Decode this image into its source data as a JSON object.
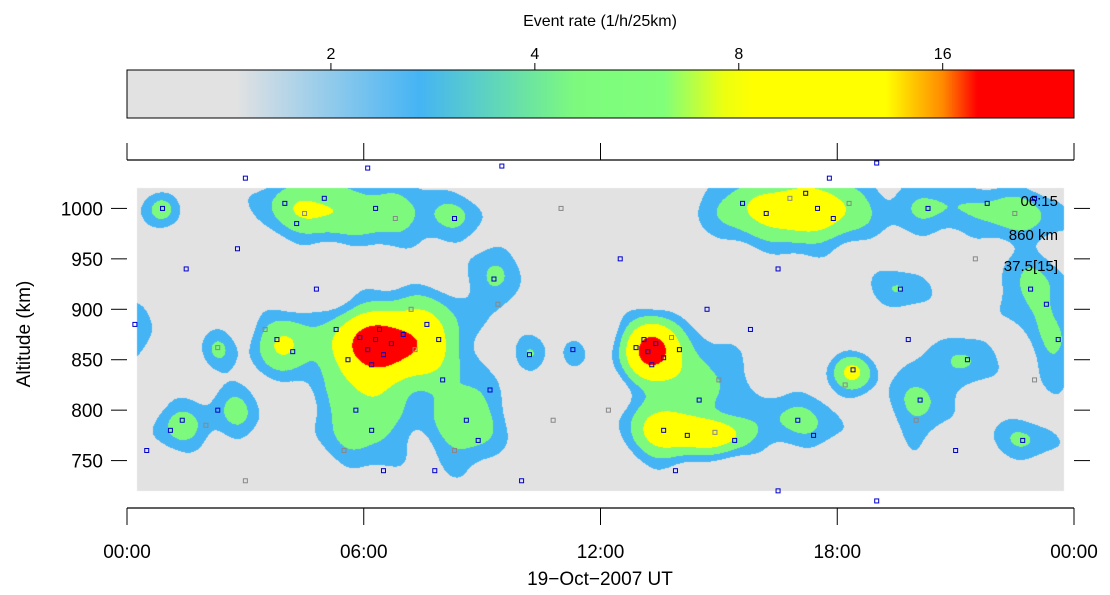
{
  "chart_data": {
    "type": "heatmap",
    "colorbar": {
      "title": "Event rate (1/h/25km)",
      "ticks": [
        2,
        4,
        8,
        16
      ],
      "tick_labels": [
        "2",
        "4",
        "8",
        "16"
      ],
      "range": [
        1,
        25
      ],
      "scale": "log2",
      "stops": [
        {
          "v": 1.0,
          "c": "#e2e2e2"
        },
        {
          "v": 1.45,
          "c": "#e2e2e2"
        },
        {
          "v": 2.7,
          "c": "#45b4f4"
        },
        {
          "v": 4.6,
          "c": "#7dfa7d"
        },
        {
          "v": 6.2,
          "c": "#80ff7a"
        },
        {
          "v": 7.6,
          "c": "#ecff10"
        },
        {
          "v": 8.4,
          "c": "#ffff00"
        },
        {
          "v": 13.2,
          "c": "#ffff00"
        },
        {
          "v": 16.0,
          "c": "#ff8a00"
        },
        {
          "v": 18.0,
          "c": "#ff0000"
        },
        {
          "v": 25.0,
          "c": "#ff0000"
        }
      ]
    },
    "xlabel": "19−Oct−2007 UT",
    "ylabel": "Altitude (km)",
    "x_ticks": [
      0,
      6,
      12,
      18,
      24
    ],
    "x_tick_labels": [
      "00:00",
      "06:00",
      "12:00",
      "18:00",
      "00:00"
    ],
    "xlim": [
      0,
      24
    ],
    "ylim": [
      703,
      1048
    ],
    "y_ticks": [
      750,
      800,
      850,
      900,
      950,
      1000
    ],
    "y_tick_labels": [
      "750",
      "800",
      "850",
      "900",
      "950",
      "1000"
    ],
    "annotations": [
      "06:15",
      "860 km",
      "37.5[15]"
    ],
    "contour_levels": [
      {
        "level": 2.5,
        "color": "#45b4f4"
      },
      {
        "level": 4.5,
        "color": "#7dfa7d"
      },
      {
        "level": 8,
        "color": "#ffff00"
      },
      {
        "level": 16,
        "color": "#ff0000"
      }
    ],
    "data_extent": {
      "x": [
        0.25,
        23.75
      ],
      "y": [
        720,
        1020
      ]
    },
    "hotspots": [
      {
        "x": 6.3,
        "y": 865,
        "peak": 20,
        "sx": 0.7,
        "sy": 22
      },
      {
        "x": 13.3,
        "y": 860,
        "peak": 19,
        "sx": 0.45,
        "sy": 18
      },
      {
        "x": 7.6,
        "y": 870,
        "peak": 9,
        "sx": 0.6,
        "sy": 28
      },
      {
        "x": 4.0,
        "y": 865,
        "peak": 8,
        "sx": 0.5,
        "sy": 18
      },
      {
        "x": 4.6,
        "y": 1000,
        "peak": 7,
        "sx": 0.8,
        "sy": 20
      },
      {
        "x": 6.5,
        "y": 995,
        "peak": 5,
        "sx": 0.9,
        "sy": 20
      },
      {
        "x": 6.0,
        "y": 800,
        "peak": 6,
        "sx": 0.8,
        "sy": 35
      },
      {
        "x": 8.6,
        "y": 790,
        "peak": 6,
        "sx": 0.6,
        "sy": 30
      },
      {
        "x": 1.4,
        "y": 785,
        "peak": 5,
        "sx": 0.5,
        "sy": 15
      },
      {
        "x": 13.6,
        "y": 780,
        "peak": 9,
        "sx": 0.6,
        "sy": 20
      },
      {
        "x": 14.9,
        "y": 776,
        "peak": 10,
        "sx": 0.6,
        "sy": 12
      },
      {
        "x": 14.4,
        "y": 830,
        "peak": 5,
        "sx": 0.8,
        "sy": 25
      },
      {
        "x": 15.6,
        "y": 1000,
        "peak": 5,
        "sx": 0.7,
        "sy": 18
      },
      {
        "x": 17.6,
        "y": 1000,
        "peak": 8,
        "sx": 0.9,
        "sy": 22
      },
      {
        "x": 16.8,
        "y": 995,
        "peak": 5,
        "sx": 0.7,
        "sy": 20
      },
      {
        "x": 20.3,
        "y": 1000,
        "peak": 4,
        "sx": 0.6,
        "sy": 15
      },
      {
        "x": 22.4,
        "y": 995,
        "peak": 5,
        "sx": 0.9,
        "sy": 18
      },
      {
        "x": 22.9,
        "y": 920,
        "peak": 4,
        "sx": 0.6,
        "sy": 25
      },
      {
        "x": 18.4,
        "y": 838,
        "peak": 8,
        "sx": 0.35,
        "sy": 12
      },
      {
        "x": 17.0,
        "y": 790,
        "peak": 4,
        "sx": 0.8,
        "sy": 20
      },
      {
        "x": 20.1,
        "y": 810,
        "peak": 4,
        "sx": 0.5,
        "sy": 30
      },
      {
        "x": 22.7,
        "y": 770,
        "peak": 3.5,
        "sx": 0.6,
        "sy": 15
      },
      {
        "x": 19.6,
        "y": 920,
        "peak": 3.5,
        "sx": 0.5,
        "sy": 15
      },
      {
        "x": 9.3,
        "y": 930,
        "peak": 4,
        "sx": 0.4,
        "sy": 25
      },
      {
        "x": 2.8,
        "y": 800,
        "peak": 4,
        "sx": 0.4,
        "sy": 20
      },
      {
        "x": 0.9,
        "y": 1000,
        "peak": 5,
        "sx": 0.3,
        "sy": 12
      },
      {
        "x": 0.2,
        "y": 880,
        "peak": 3.5,
        "sx": 0.3,
        "sy": 25
      },
      {
        "x": 10.2,
        "y": 855,
        "peak": 3.5,
        "sx": 0.3,
        "sy": 12
      },
      {
        "x": 2.3,
        "y": 860,
        "peak": 3.5,
        "sx": 0.3,
        "sy": 15
      },
      {
        "x": 8.3,
        "y": 990,
        "peak": 3.5,
        "sx": 0.5,
        "sy": 15
      },
      {
        "x": 11.3,
        "y": 855,
        "peak": 3,
        "sx": 0.2,
        "sy": 10
      },
      {
        "x": 23.5,
        "y": 865,
        "peak": 3.5,
        "sx": 0.4,
        "sy": 30
      },
      {
        "x": 21.3,
        "y": 850,
        "peak": 3.5,
        "sx": 0.5,
        "sy": 20
      }
    ],
    "scatter": [
      {
        "x": 6.1,
        "y": 860,
        "c": "#0000cc"
      },
      {
        "x": 6.3,
        "y": 870,
        "c": "#0000cc"
      },
      {
        "x": 6.5,
        "y": 855,
        "c": "#0000cc"
      },
      {
        "x": 6.2,
        "y": 845,
        "c": "#0000cc"
      },
      {
        "x": 6.4,
        "y": 880,
        "c": "#0000cc"
      },
      {
        "x": 5.9,
        "y": 872,
        "c": "#0000cc"
      },
      {
        "x": 6.7,
        "y": 866,
        "c": "#0000cc"
      },
      {
        "x": 7.0,
        "y": 875,
        "c": "#0000cc"
      },
      {
        "x": 7.3,
        "y": 860,
        "c": "#888888"
      },
      {
        "x": 7.6,
        "y": 885,
        "c": "#0000cc"
      },
      {
        "x": 7.9,
        "y": 870,
        "c": "#0000cc"
      },
      {
        "x": 7.2,
        "y": 900,
        "c": "#888888"
      },
      {
        "x": 5.6,
        "y": 850,
        "c": "#0000cc"
      },
      {
        "x": 5.3,
        "y": 880,
        "c": "#0000cc"
      },
      {
        "x": 13.2,
        "y": 858,
        "c": "#0000cc"
      },
      {
        "x": 13.4,
        "y": 866,
        "c": "#0000cc"
      },
      {
        "x": 13.1,
        "y": 870,
        "c": "#0000cc"
      },
      {
        "x": 13.6,
        "y": 852,
        "c": "#0000cc"
      },
      {
        "x": 13.3,
        "y": 845,
        "c": "#0000cc"
      },
      {
        "x": 13.8,
        "y": 872,
        "c": "#888888"
      },
      {
        "x": 12.9,
        "y": 862,
        "c": "#0000cc"
      },
      {
        "x": 14.0,
        "y": 860,
        "c": "#0000cc"
      },
      {
        "x": 4.0,
        "y": 1005,
        "c": "#0000cc"
      },
      {
        "x": 4.5,
        "y": 995,
        "c": "#888888"
      },
      {
        "x": 5.0,
        "y": 1010,
        "c": "#0000cc"
      },
      {
        "x": 4.3,
        "y": 985,
        "c": "#0000cc"
      },
      {
        "x": 6.3,
        "y": 1000,
        "c": "#0000cc"
      },
      {
        "x": 6.8,
        "y": 990,
        "c": "#888888"
      },
      {
        "x": 3.8,
        "y": 870,
        "c": "#0000cc"
      },
      {
        "x": 4.2,
        "y": 858,
        "c": "#0000cc"
      },
      {
        "x": 3.5,
        "y": 880,
        "c": "#888888"
      },
      {
        "x": 1.4,
        "y": 790,
        "c": "#0000cc"
      },
      {
        "x": 1.1,
        "y": 780,
        "c": "#0000cc"
      },
      {
        "x": 2.0,
        "y": 785,
        "c": "#888888"
      },
      {
        "x": 2.3,
        "y": 800,
        "c": "#0000cc"
      },
      {
        "x": 5.8,
        "y": 800,
        "c": "#0000cc"
      },
      {
        "x": 6.2,
        "y": 780,
        "c": "#0000cc"
      },
      {
        "x": 5.5,
        "y": 760,
        "c": "#888888"
      },
      {
        "x": 6.5,
        "y": 740,
        "c": "#0000cc"
      },
      {
        "x": 8.6,
        "y": 790,
        "c": "#0000cc"
      },
      {
        "x": 8.9,
        "y": 770,
        "c": "#0000cc"
      },
      {
        "x": 8.3,
        "y": 760,
        "c": "#888888"
      },
      {
        "x": 9.2,
        "y": 820,
        "c": "#0000cc"
      },
      {
        "x": 13.6,
        "y": 780,
        "c": "#0000cc"
      },
      {
        "x": 14.2,
        "y": 775,
        "c": "#0000cc"
      },
      {
        "x": 14.9,
        "y": 778,
        "c": "#888888"
      },
      {
        "x": 15.4,
        "y": 770,
        "c": "#0000cc"
      },
      {
        "x": 13.9,
        "y": 740,
        "c": "#0000cc"
      },
      {
        "x": 14.5,
        "y": 810,
        "c": "#0000cc"
      },
      {
        "x": 15.0,
        "y": 830,
        "c": "#888888"
      },
      {
        "x": 15.6,
        "y": 1005,
        "c": "#0000cc"
      },
      {
        "x": 16.2,
        "y": 995,
        "c": "#0000cc"
      },
      {
        "x": 16.8,
        "y": 1010,
        "c": "#888888"
      },
      {
        "x": 17.5,
        "y": 1000,
        "c": "#0000cc"
      },
      {
        "x": 17.9,
        "y": 990,
        "c": "#0000cc"
      },
      {
        "x": 18.3,
        "y": 1005,
        "c": "#888888"
      },
      {
        "x": 17.2,
        "y": 1015,
        "c": "#0000cc"
      },
      {
        "x": 20.3,
        "y": 1000,
        "c": "#0000cc"
      },
      {
        "x": 21.8,
        "y": 1005,
        "c": "#0000cc"
      },
      {
        "x": 22.5,
        "y": 995,
        "c": "#888888"
      },
      {
        "x": 23.0,
        "y": 1010,
        "c": "#0000cc"
      },
      {
        "x": 22.9,
        "y": 920,
        "c": "#0000cc"
      },
      {
        "x": 23.3,
        "y": 905,
        "c": "#0000cc"
      },
      {
        "x": 18.4,
        "y": 840,
        "c": "#0000cc"
      },
      {
        "x": 18.2,
        "y": 825,
        "c": "#888888"
      },
      {
        "x": 17.0,
        "y": 790,
        "c": "#0000cc"
      },
      {
        "x": 17.4,
        "y": 775,
        "c": "#0000cc"
      },
      {
        "x": 20.1,
        "y": 810,
        "c": "#0000cc"
      },
      {
        "x": 20.0,
        "y": 790,
        "c": "#888888"
      },
      {
        "x": 22.7,
        "y": 770,
        "c": "#0000cc"
      },
      {
        "x": 21.3,
        "y": 850,
        "c": "#0000cc"
      },
      {
        "x": 23.6,
        "y": 870,
        "c": "#0000cc"
      },
      {
        "x": 9.3,
        "y": 930,
        "c": "#0000cc"
      },
      {
        "x": 9.4,
        "y": 905,
        "c": "#888888"
      },
      {
        "x": 10.2,
        "y": 855,
        "c": "#0000cc"
      },
      {
        "x": 0.9,
        "y": 1000,
        "c": "#0000cc"
      },
      {
        "x": 0.2,
        "y": 885,
        "c": "#0000cc"
      },
      {
        "x": 2.3,
        "y": 862,
        "c": "#888888"
      },
      {
        "x": 8.3,
        "y": 990,
        "c": "#0000cc"
      },
      {
        "x": 11.3,
        "y": 860,
        "c": "#0000cc"
      },
      {
        "x": 19.6,
        "y": 920,
        "c": "#0000cc"
      },
      {
        "x": 10.0,
        "y": 730,
        "c": "#0000cc"
      },
      {
        "x": 3.0,
        "y": 730,
        "c": "#888888"
      },
      {
        "x": 16.5,
        "y": 720,
        "c": "#0000cc"
      },
      {
        "x": 19.0,
        "y": 710,
        "c": "#0000cc"
      },
      {
        "x": 12.5,
        "y": 950,
        "c": "#0000cc"
      },
      {
        "x": 11.0,
        "y": 1000,
        "c": "#888888"
      },
      {
        "x": 1.5,
        "y": 940,
        "c": "#0000cc"
      },
      {
        "x": 3.0,
        "y": 1030,
        "c": "#0000cc"
      },
      {
        "x": 6.1,
        "y": 1040,
        "c": "#0000cc"
      },
      {
        "x": 9.5,
        "y": 1042,
        "c": "#0000cc"
      },
      {
        "x": 17.8,
        "y": 1030,
        "c": "#0000cc"
      },
      {
        "x": 19.0,
        "y": 1045,
        "c": "#0000cc"
      },
      {
        "x": 21.5,
        "y": 950,
        "c": "#888888"
      },
      {
        "x": 4.8,
        "y": 920,
        "c": "#0000cc"
      },
      {
        "x": 8.0,
        "y": 830,
        "c": "#0000cc"
      },
      {
        "x": 10.8,
        "y": 790,
        "c": "#888888"
      },
      {
        "x": 15.8,
        "y": 880,
        "c": "#0000cc"
      },
      {
        "x": 16.5,
        "y": 940,
        "c": "#0000cc"
      },
      {
        "x": 21.0,
        "y": 760,
        "c": "#0000cc"
      },
      {
        "x": 23.0,
        "y": 830,
        "c": "#888888"
      },
      {
        "x": 0.5,
        "y": 760,
        "c": "#0000cc"
      },
      {
        "x": 2.8,
        "y": 960,
        "c": "#0000cc"
      },
      {
        "x": 7.8,
        "y": 740,
        "c": "#0000cc"
      },
      {
        "x": 12.2,
        "y": 800,
        "c": "#888888"
      },
      {
        "x": 14.7,
        "y": 900,
        "c": "#0000cc"
      },
      {
        "x": 19.8,
        "y": 870,
        "c": "#0000cc"
      }
    ]
  }
}
